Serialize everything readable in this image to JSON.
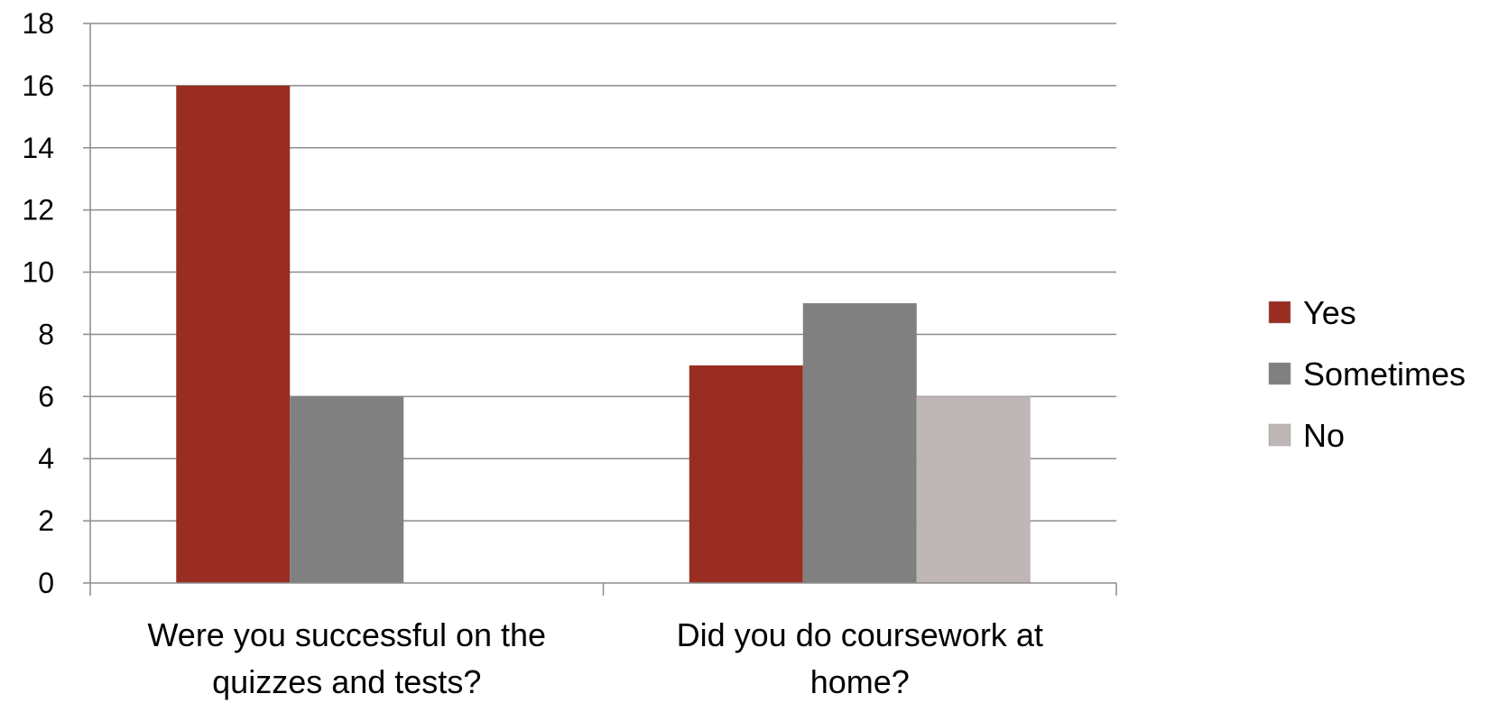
{
  "chart_data": {
    "type": "bar",
    "title": "",
    "xlabel": "",
    "ylabel": "",
    "ylim": [
      0,
      18
    ],
    "yticks": [
      0,
      2,
      4,
      6,
      8,
      10,
      12,
      14,
      16,
      18
    ],
    "grid": true,
    "legend_position": "right",
    "categories": [
      [
        "Were you successful on the",
        "quizzes and tests?"
      ],
      [
        "Did you do coursework at",
        "home?"
      ]
    ],
    "series": [
      {
        "name": "Yes",
        "color": "#992d22",
        "values": [
          16,
          7
        ]
      },
      {
        "name": "Sometimes",
        "color": "#808080",
        "values": [
          6,
          9
        ]
      },
      {
        "name": "No",
        "color": "#bfb6b6",
        "values": [
          0,
          6
        ]
      }
    ]
  }
}
